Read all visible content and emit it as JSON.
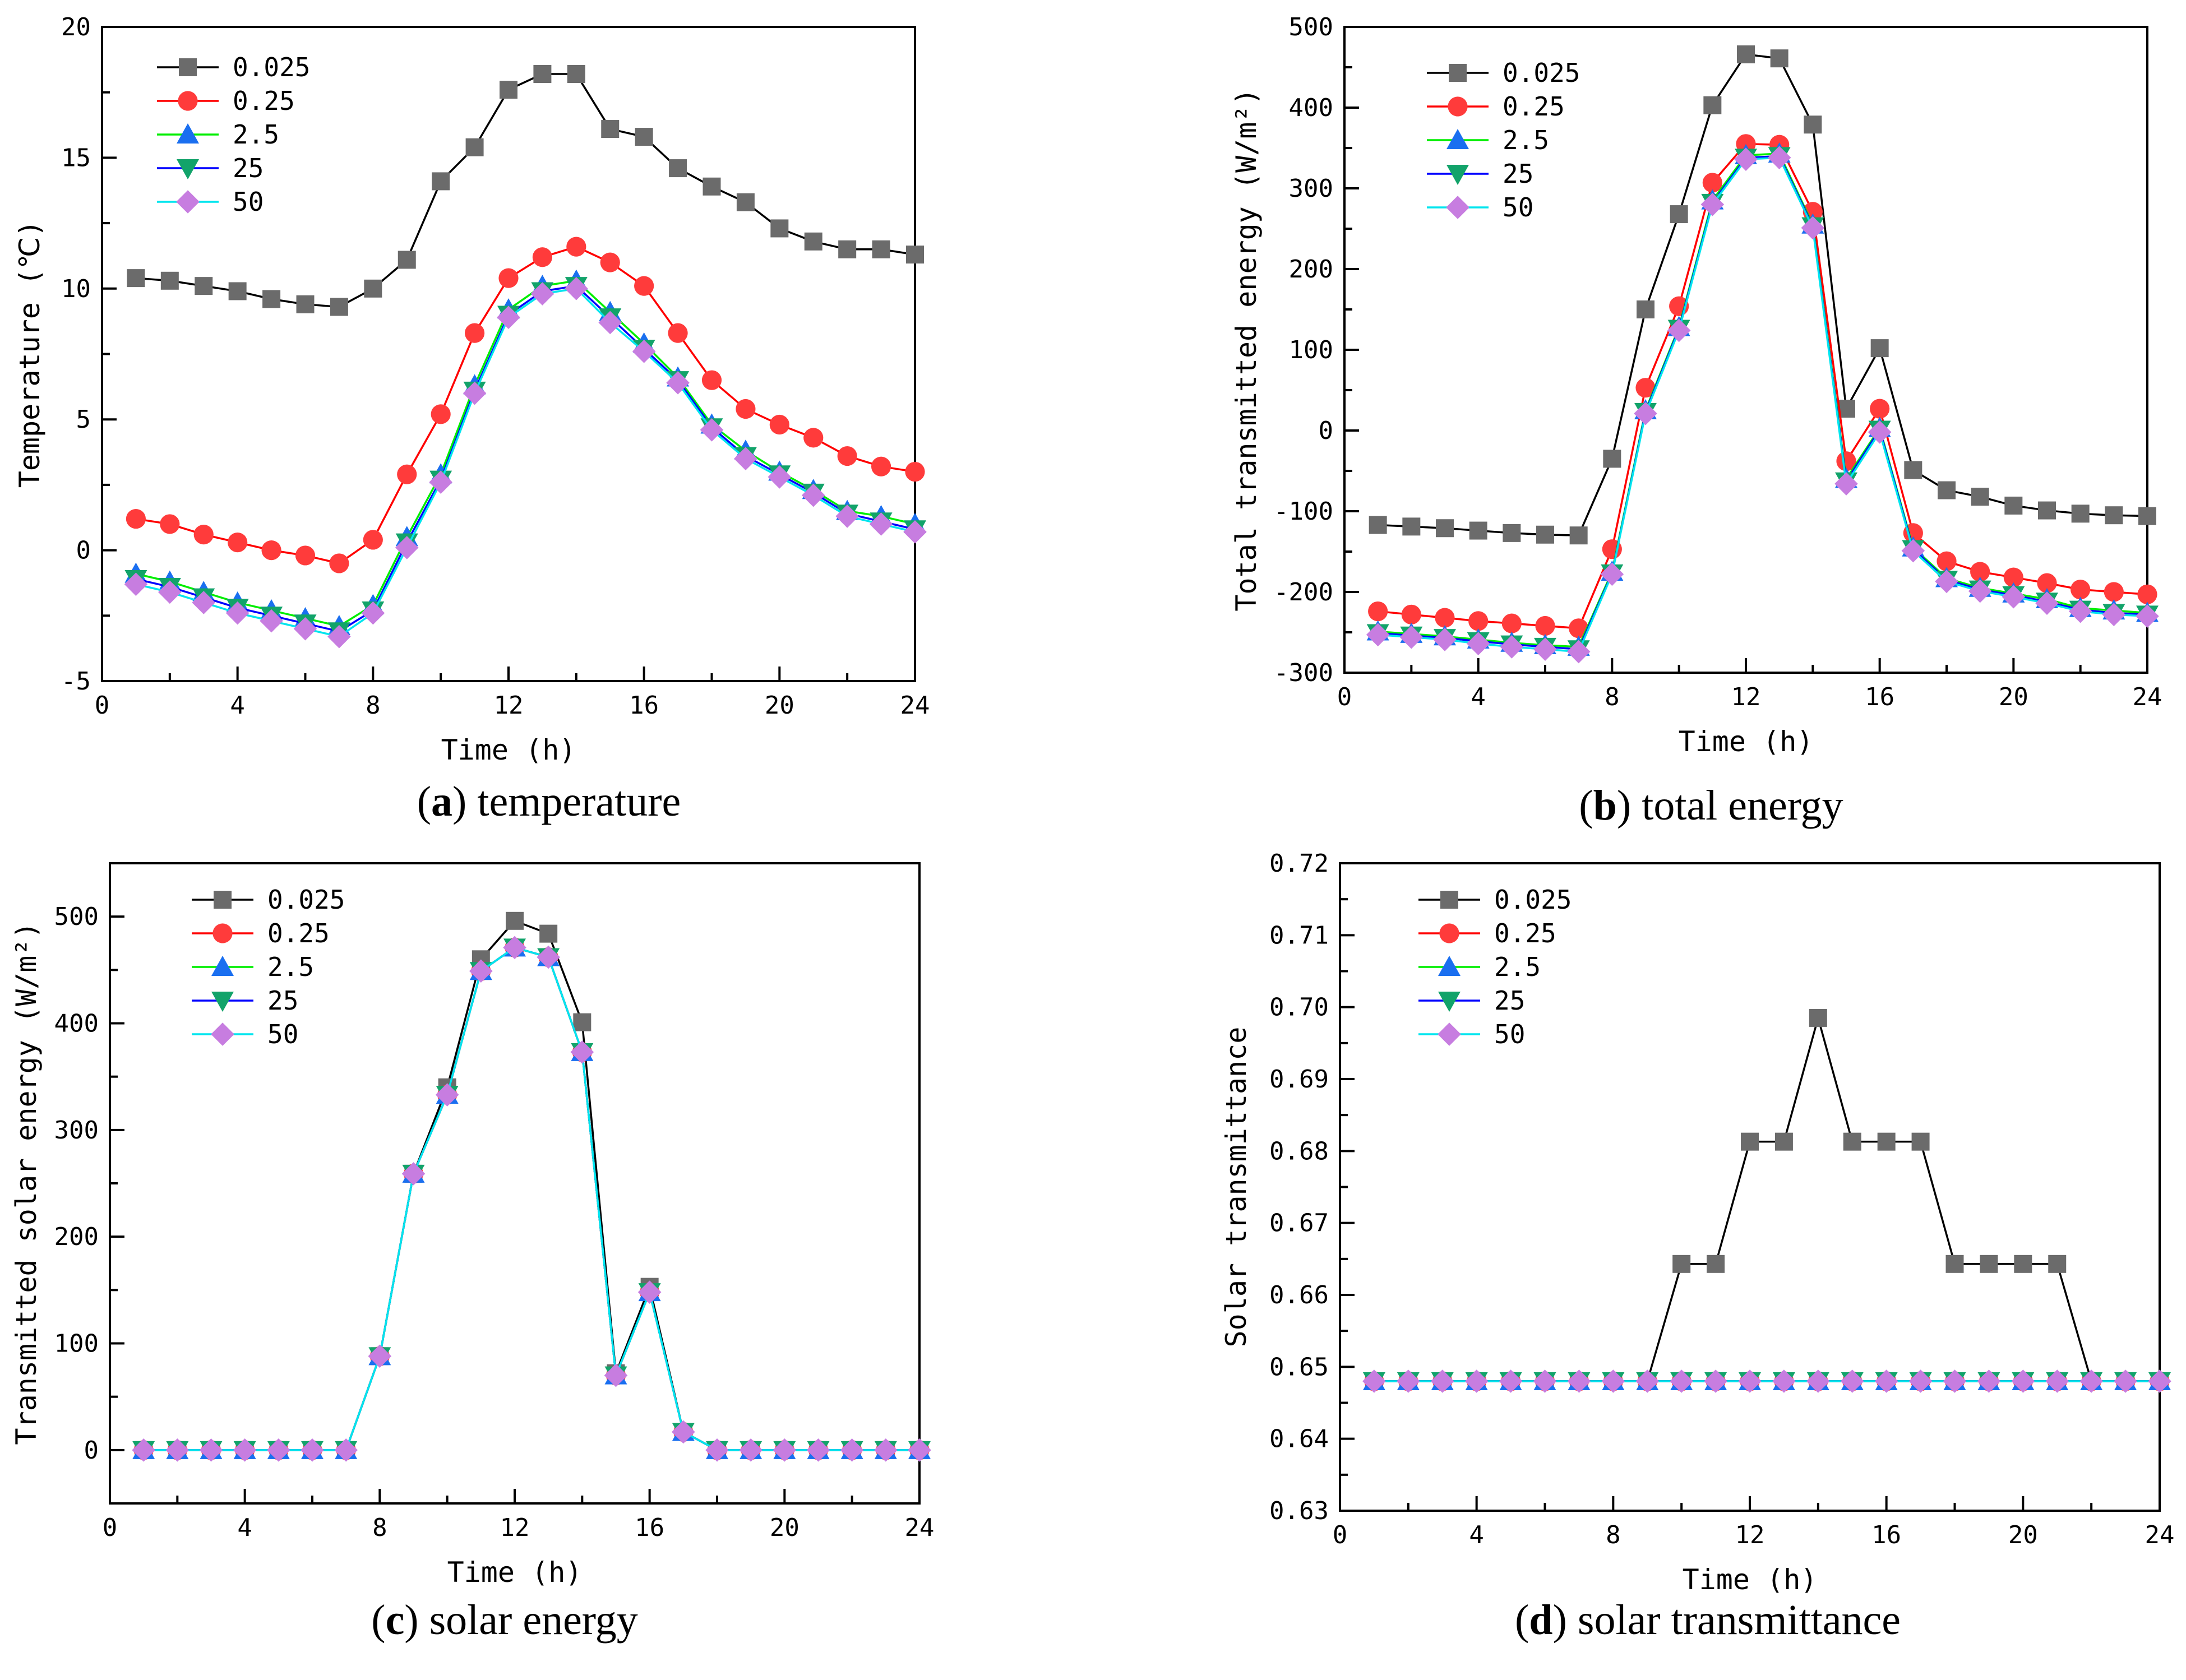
{
  "legend_entries": [
    "0.025",
    "0.25",
    "2.5",
    "25",
    "50"
  ],
  "series_styles": [
    {
      "name": "0.025",
      "line": "#000000",
      "fill": "#6b6b6b",
      "marker": "square"
    },
    {
      "name": "0.25",
      "line": "#ff0000",
      "fill": "#ff3b3b",
      "marker": "circle"
    },
    {
      "name": "2.5",
      "line": "#00ee00",
      "fill": "#1a6ff0",
      "marker": "triangle-up"
    },
    {
      "name": "25",
      "line": "#0000ff",
      "fill": "#12a36a",
      "marker": "triangle-down"
    },
    {
      "name": "50",
      "line": "#00e5ee",
      "fill": "#c77de0",
      "marker": "diamond"
    }
  ],
  "chart_data": [
    {
      "id": "a",
      "type": "line",
      "caption_letter": "a",
      "caption_text": "temperature",
      "xlabel": "Time (h)",
      "ylabel": "Temperature (℃)",
      "xlim": [
        0,
        24
      ],
      "ylim": [
        -5,
        20
      ],
      "xticks": [
        0,
        4,
        8,
        12,
        16,
        20,
        24
      ],
      "xtick_labels": [
        "0",
        "4",
        "8",
        "12",
        "16",
        "20",
        "24"
      ],
      "yticks": [
        -5,
        0,
        5,
        10,
        15,
        20
      ],
      "ytick_labels": [
        "-5",
        "0",
        "5",
        "10",
        "15",
        "20"
      ],
      "x": [
        1,
        2,
        3,
        4,
        5,
        6,
        7,
        8,
        9,
        10,
        11,
        12,
        13,
        14,
        15,
        16,
        17,
        18,
        19,
        20,
        21,
        22,
        23,
        24
      ],
      "series": [
        {
          "name": "0.025",
          "values": [
            10.4,
            10.3,
            10.1,
            9.9,
            9.6,
            9.4,
            9.3,
            10.0,
            11.1,
            14.1,
            15.4,
            17.6,
            18.2,
            18.2,
            16.1,
            15.8,
            14.6,
            13.9,
            13.3,
            12.3,
            11.8,
            11.5,
            11.5,
            11.3
          ]
        },
        {
          "name": "0.25",
          "values": [
            1.2,
            1.0,
            0.6,
            0.3,
            0.0,
            -0.2,
            -0.5,
            0.4,
            2.9,
            5.2,
            8.3,
            10.4,
            11.2,
            11.6,
            11.0,
            10.1,
            8.3,
            6.5,
            5.4,
            4.8,
            4.3,
            3.6,
            3.2,
            3.0
          ]
        },
        {
          "name": "2.5",
          "values": [
            -0.9,
            -1.2,
            -1.6,
            -2.0,
            -2.3,
            -2.6,
            -2.9,
            -2.1,
            0.5,
            2.9,
            6.3,
            9.2,
            10.1,
            10.3,
            9.1,
            7.9,
            6.6,
            4.8,
            3.8,
            3.0,
            2.3,
            1.5,
            1.3,
            1.0
          ]
        },
        {
          "name": "25",
          "values": [
            -1.1,
            -1.4,
            -1.8,
            -2.2,
            -2.5,
            -2.8,
            -3.1,
            -2.3,
            0.3,
            2.7,
            6.1,
            9.0,
            9.9,
            10.1,
            8.9,
            7.7,
            6.5,
            4.7,
            3.6,
            2.9,
            2.2,
            1.4,
            1.1,
            0.8
          ]
        },
        {
          "name": "50",
          "values": [
            -1.3,
            -1.6,
            -2.0,
            -2.4,
            -2.7,
            -3.0,
            -3.3,
            -2.4,
            0.1,
            2.6,
            6.0,
            8.9,
            9.8,
            10.0,
            8.7,
            7.6,
            6.4,
            4.6,
            3.5,
            2.8,
            2.1,
            1.3,
            1.0,
            0.7
          ]
        }
      ]
    },
    {
      "id": "b",
      "type": "line",
      "caption_letter": "b",
      "caption_text": "total energy",
      "xlabel": "Time (h)",
      "ylabel": "Total transmitted energy (W/m²)",
      "xlim": [
        0,
        24
      ],
      "ylim": [
        -300,
        500
      ],
      "xticks": [
        0,
        4,
        8,
        12,
        16,
        20,
        24
      ],
      "xtick_labels": [
        "0",
        "4",
        "8",
        "12",
        "16",
        "20",
        "24"
      ],
      "yticks": [
        -300,
        -200,
        -100,
        0,
        100,
        200,
        300,
        400,
        500
      ],
      "ytick_labels": [
        "-300",
        "-200",
        "-100",
        "0",
        "100",
        "200",
        "300",
        "400",
        "500"
      ],
      "x": [
        1,
        2,
        3,
        4,
        5,
        6,
        7,
        8,
        9,
        10,
        11,
        12,
        13,
        14,
        15,
        16,
        17,
        18,
        19,
        20,
        21,
        22,
        23,
        24
      ],
      "series": [
        {
          "name": "0.025",
          "values": [
            -117,
            -119,
            -121,
            -124,
            -127,
            -129,
            -130,
            -35,
            150,
            268,
            403,
            466,
            461,
            379,
            27,
            102,
            -49,
            -74,
            -82,
            -93,
            -99,
            -103,
            -105,
            -106
          ]
        },
        {
          "name": "0.25",
          "values": [
            -224,
            -228,
            -232,
            -236,
            -239,
            -242,
            -245,
            -147,
            53,
            154,
            307,
            355,
            354,
            271,
            -38,
            27,
            -127,
            -162,
            -175,
            -182,
            -189,
            -197,
            -200,
            -203
          ]
        },
        {
          "name": "2.5",
          "values": [
            -249,
            -252,
            -255,
            -259,
            -263,
            -266,
            -268,
            -175,
            25,
            128,
            285,
            341,
            343,
            255,
            -60,
            3,
            -145,
            -183,
            -195,
            -202,
            -209,
            -220,
            -223,
            -226
          ]
        },
        {
          "name": "25",
          "values": [
            -251,
            -254,
            -257,
            -261,
            -265,
            -268,
            -271,
            -177,
            23,
            126,
            282,
            338,
            340,
            253,
            -63,
            1,
            -147,
            -185,
            -197,
            -204,
            -212,
            -222,
            -226,
            -228
          ]
        },
        {
          "name": "50",
          "values": [
            -253,
            -256,
            -259,
            -264,
            -268,
            -271,
            -274,
            -178,
            21,
            124,
            280,
            336,
            338,
            251,
            -66,
            -2,
            -149,
            -187,
            -199,
            -206,
            -214,
            -224,
            -228,
            -230
          ]
        }
      ]
    },
    {
      "id": "c",
      "type": "line",
      "caption_letter": "c",
      "caption_text": "solar energy",
      "xlabel": "Time (h)",
      "ylabel": "Transmitted solar energy (W/m²)",
      "xlim": [
        0,
        24
      ],
      "ylim": [
        -50,
        550
      ],
      "xticks": [
        0,
        4,
        8,
        12,
        16,
        20,
        24
      ],
      "xtick_labels": [
        "0",
        "4",
        "8",
        "12",
        "16",
        "20",
        "24"
      ],
      "yticks": [
        0,
        100,
        200,
        300,
        400,
        500
      ],
      "ytick_labels": [
        "0",
        "100",
        "200",
        "300",
        "400",
        "500"
      ],
      "x": [
        1,
        2,
        3,
        4,
        5,
        6,
        7,
        8,
        9,
        10,
        11,
        12,
        13,
        14,
        15,
        16,
        17,
        18,
        19,
        20,
        21,
        22,
        23,
        24
      ],
      "series": [
        {
          "name": "0.025",
          "values": [
            0,
            0,
            0,
            0,
            0,
            0,
            0,
            88,
            259,
            340,
            460,
            496,
            484,
            401,
            72,
            153,
            17,
            0,
            0,
            0,
            0,
            0,
            0,
            0
          ]
        },
        {
          "name": "0.25",
          "values": [
            0,
            0,
            0,
            0,
            0,
            0,
            0,
            88,
            259,
            333,
            449,
            471,
            462,
            373,
            70,
            148,
            17,
            0,
            0,
            0,
            0,
            0,
            0,
            0
          ]
        },
        {
          "name": "2.5",
          "values": [
            0,
            0,
            0,
            0,
            0,
            0,
            0,
            88,
            259,
            333,
            449,
            471,
            462,
            373,
            70,
            148,
            17,
            0,
            0,
            0,
            0,
            0,
            0,
            0
          ]
        },
        {
          "name": "25",
          "values": [
            0,
            0,
            0,
            0,
            0,
            0,
            0,
            88,
            259,
            333,
            449,
            471,
            462,
            373,
            70,
            148,
            17,
            0,
            0,
            0,
            0,
            0,
            0,
            0
          ]
        },
        {
          "name": "50",
          "values": [
            0,
            0,
            0,
            0,
            0,
            0,
            0,
            88,
            259,
            333,
            449,
            471,
            462,
            373,
            70,
            148,
            17,
            0,
            0,
            0,
            0,
            0,
            0,
            0
          ]
        }
      ]
    },
    {
      "id": "d",
      "type": "line",
      "caption_letter": "d",
      "caption_text": "solar transmittance",
      "xlabel": "Time (h)",
      "ylabel": "Solar transmittance",
      "xlim": [
        0,
        24
      ],
      "ylim": [
        0.63,
        0.72
      ],
      "xticks": [
        0,
        4,
        8,
        12,
        16,
        20,
        24
      ],
      "xtick_labels": [
        "0",
        "4",
        "8",
        "12",
        "16",
        "20",
        "24"
      ],
      "yticks": [
        0.63,
        0.64,
        0.65,
        0.66,
        0.67,
        0.68,
        0.69,
        0.7,
        0.71,
        0.72
      ],
      "ytick_labels": [
        "0.63",
        "0.64",
        "0.65",
        "0.66",
        "0.67",
        "0.68",
        "0.69",
        "0.70",
        "0.71",
        "0.72"
      ],
      "x": [
        1,
        2,
        3,
        4,
        5,
        6,
        7,
        8,
        9,
        10,
        11,
        12,
        13,
        14,
        15,
        16,
        17,
        18,
        19,
        20,
        21,
        22,
        23,
        24
      ],
      "series": [
        {
          "name": "0.025",
          "values": [
            0.648,
            0.648,
            0.648,
            0.648,
            0.648,
            0.648,
            0.648,
            0.648,
            0.648,
            0.6643,
            0.6643,
            0.6813,
            0.6813,
            0.6985,
            0.6813,
            0.6813,
            0.6813,
            0.6643,
            0.6643,
            0.6643,
            0.6643,
            0.648,
            0.648,
            0.648
          ]
        },
        {
          "name": "0.25",
          "values": [
            0.648,
            0.648,
            0.648,
            0.648,
            0.648,
            0.648,
            0.648,
            0.648,
            0.648,
            0.648,
            0.648,
            0.648,
            0.648,
            0.648,
            0.648,
            0.648,
            0.648,
            0.648,
            0.648,
            0.648,
            0.648,
            0.648,
            0.648,
            0.648
          ]
        },
        {
          "name": "2.5",
          "values": [
            0.648,
            0.648,
            0.648,
            0.648,
            0.648,
            0.648,
            0.648,
            0.648,
            0.648,
            0.648,
            0.648,
            0.648,
            0.648,
            0.648,
            0.648,
            0.648,
            0.648,
            0.648,
            0.648,
            0.648,
            0.648,
            0.648,
            0.648,
            0.648
          ]
        },
        {
          "name": "25",
          "values": [
            0.648,
            0.648,
            0.648,
            0.648,
            0.648,
            0.648,
            0.648,
            0.648,
            0.648,
            0.648,
            0.648,
            0.648,
            0.648,
            0.648,
            0.648,
            0.648,
            0.648,
            0.648,
            0.648,
            0.648,
            0.648,
            0.648,
            0.648,
            0.648
          ]
        },
        {
          "name": "50",
          "values": [
            0.648,
            0.648,
            0.648,
            0.648,
            0.648,
            0.648,
            0.648,
            0.648,
            0.648,
            0.648,
            0.648,
            0.648,
            0.648,
            0.648,
            0.648,
            0.648,
            0.648,
            0.648,
            0.648,
            0.648,
            0.648,
            0.648,
            0.648,
            0.648
          ]
        }
      ]
    }
  ]
}
